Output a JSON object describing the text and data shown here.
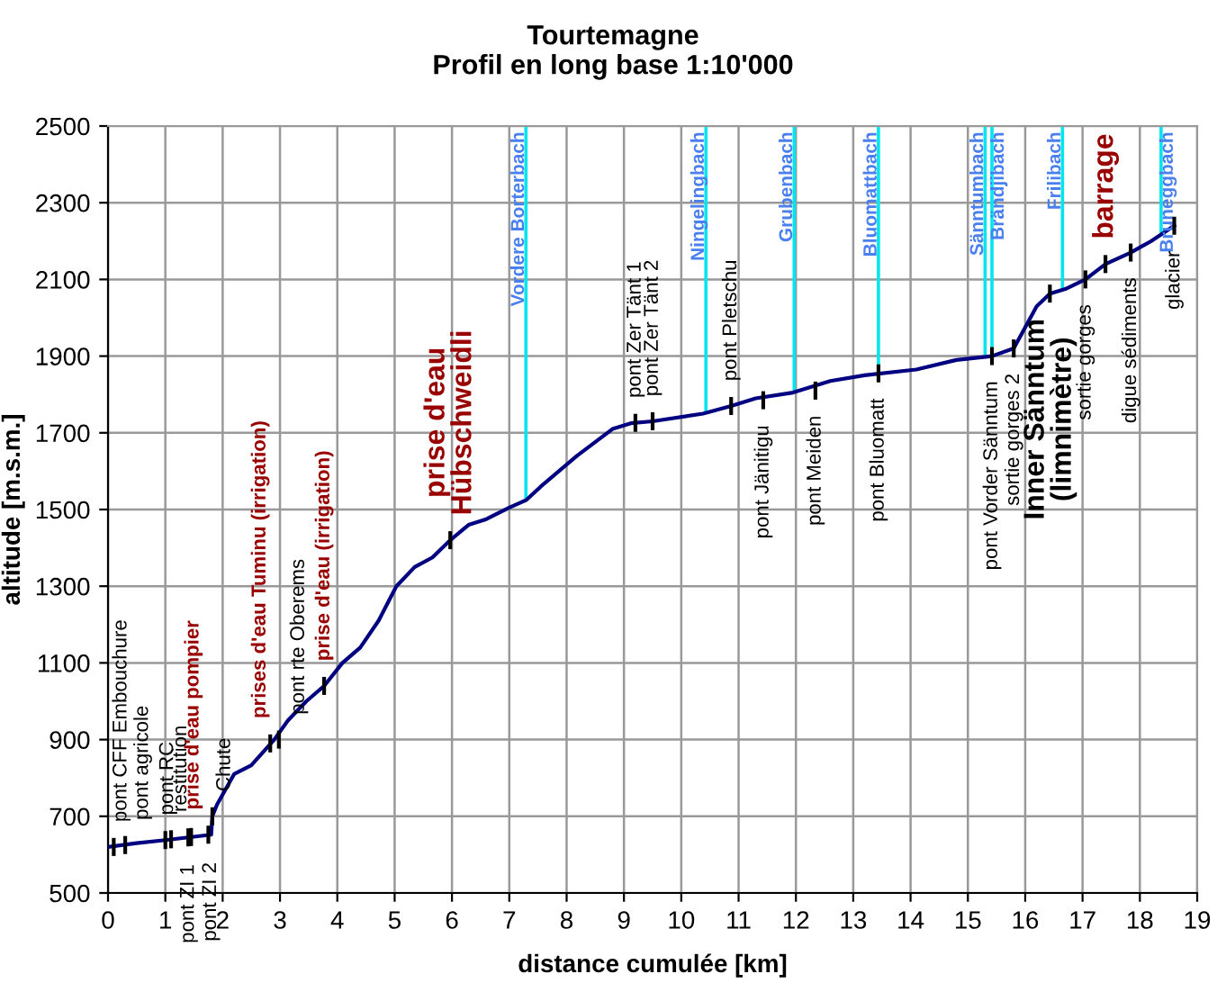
{
  "chart_data": {
    "type": "line",
    "title": "Tourtemagne",
    "subtitle": "Profil en long base 1:10'000",
    "xlabel": "distance cumulée [km]",
    "ylabel": "altitude [m.s.m.]",
    "series": [
      {
        "color": "#000080",
        "x": [
          0,
          0.5,
          1.0,
          1.4,
          1.8,
          1.82,
          1.9,
          2.2,
          2.5,
          2.9,
          3.14,
          3.46,
          3.77,
          4.09,
          4.4,
          4.72,
          5.03,
          5.35,
          5.66,
          5.97,
          6.29,
          6.6,
          7.0,
          7.3,
          7.55,
          8.18,
          8.8,
          9.12,
          9.5,
          10.38,
          10.87,
          11.3,
          11.95,
          12.6,
          13.2,
          14.1,
          14.8,
          15.42,
          15.8,
          16.2,
          16.43,
          16.7,
          17.05,
          17.4,
          17.84,
          18.2,
          18.6
        ],
        "values": [
          620,
          630,
          638,
          645,
          652,
          700,
          730,
          810,
          833,
          900,
          950,
          1000,
          1040,
          1100,
          1140,
          1210,
          1300,
          1350,
          1375,
          1420,
          1460,
          1475,
          1505,
          1525,
          1560,
          1640,
          1710,
          1725,
          1730,
          1750,
          1770,
          1790,
          1805,
          1835,
          1850,
          1865,
          1890,
          1900,
          1920,
          2030,
          2063,
          2075,
          2100,
          2140,
          2170,
          2200,
          2240
        ]
      }
    ],
    "xlim": [
      0,
      19
    ],
    "xticks": [
      0,
      1,
      2,
      3,
      4,
      5,
      6,
      7,
      8,
      9,
      10,
      11,
      12,
      13,
      14,
      15,
      16,
      17,
      18,
      19
    ],
    "ylim": [
      500,
      2500
    ],
    "yticks": [
      500,
      700,
      900,
      1100,
      1300,
      1500,
      1700,
      1900,
      2100,
      2300,
      2500
    ],
    "grid": true,
    "legend": false,
    "ref_lines": [
      {
        "axis": "x",
        "value": 7.29,
        "label": "Vordere Borterbach",
        "color": "#00e5ee"
      },
      {
        "axis": "x",
        "value": 10.43,
        "label": "Ningelingbach",
        "color": "#00e5ee"
      },
      {
        "axis": "x",
        "value": 11.97,
        "label": "Grubenbach",
        "color": "#00e5ee"
      },
      {
        "axis": "x",
        "value": 13.44,
        "label": "Bluomattbach",
        "color": "#00e5ee"
      },
      {
        "axis": "x",
        "value": 15.3,
        "label": "Sänntumbach",
        "color": "#00e5ee"
      },
      {
        "axis": "x",
        "value": 15.42,
        "label": "Brändjibach",
        "color": "#00e5ee"
      },
      {
        "axis": "x",
        "value": 16.65,
        "label": "Frilibach",
        "color": "#00e5ee"
      },
      {
        "axis": "x",
        "value": 18.37,
        "label": "Bruneggbach",
        "color": "#00e5ee"
      }
    ],
    "annotations": [
      {
        "text": "pont CFF Embouchure",
        "x": 0.1,
        "y": 620
      },
      {
        "text": "pont agricole",
        "x": 0.3,
        "y": 625
      },
      {
        "text": "pont RC",
        "x": 1.0,
        "y": 638
      },
      {
        "text": "pont ZI 1",
        "x": 1.1,
        "y": 640
      },
      {
        "text": "pont ZI 2",
        "x": 1.4,
        "y": 645
      },
      {
        "text": "restitution",
        "x": 1.45,
        "y": 646
      },
      {
        "text": "prise d'eau pompier",
        "x": 1.75,
        "y": 652
      },
      {
        "text": "Chute",
        "x": 1.82,
        "y": 700
      },
      {
        "text": "prises d'eau Tuminu (irrigation)",
        "x": 2.83,
        "y": 890
      },
      {
        "text": "pont rte Oberems",
        "x": 2.98,
        "y": 900
      },
      {
        "text": "prise d'eau (irrigation)",
        "x": 3.77,
        "y": 1040
      },
      {
        "text": "prise d'eau\nHübschweidli",
        "x": 5.97,
        "y": 1420
      },
      {
        "text": "pont Zer Tänt 1",
        "x": 9.2,
        "y": 1726
      },
      {
        "text": "pont Zer Tänt 2",
        "x": 9.5,
        "y": 1730
      },
      {
        "text": "pont Pletschu",
        "x": 10.87,
        "y": 1770
      },
      {
        "text": "pont Jänitigu",
        "x": 11.43,
        "y": 1785
      },
      {
        "text": "pont Meiden",
        "x": 12.34,
        "y": 1810
      },
      {
        "text": "pont Bluomatt",
        "x": 13.44,
        "y": 1855
      },
      {
        "text": "pont Vorder Sänntum",
        "x": 15.42,
        "y": 1900
      },
      {
        "text": "sortie gorges 2",
        "x": 15.8,
        "y": 1920
      },
      {
        "text": "Inner Sänntum\n(limnimètre)",
        "x": 16.43,
        "y": 2063
      },
      {
        "text": "sortie gorges",
        "x": 17.05,
        "y": 2100
      },
      {
        "text": "barrage",
        "x": 17.4,
        "y": 2140
      },
      {
        "text": "digue sédiments",
        "x": 17.84,
        "y": 2170
      },
      {
        "text": "glacier",
        "x": 18.6,
        "y": 2240
      }
    ]
  }
}
